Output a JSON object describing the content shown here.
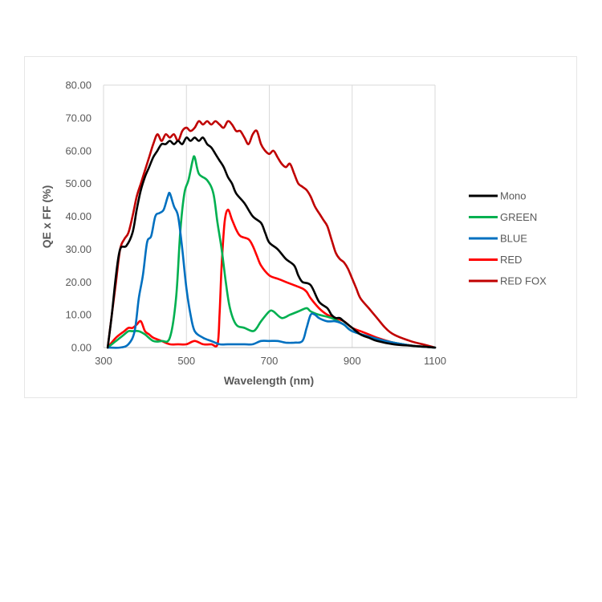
{
  "chart_data": {
    "type": "line",
    "title": "",
    "xlabel": "Wavelength (nm)",
    "ylabel": "QE x FF (%)",
    "xlim": [
      300,
      1100
    ],
    "ylim": [
      0,
      80
    ],
    "xticks": [
      "300",
      "500",
      "700",
      "900",
      "1100"
    ],
    "yticks": [
      "0.00",
      "10.00",
      "20.00",
      "30.00",
      "40.00",
      "50.00",
      "60.00",
      "70.00",
      "80.00"
    ],
    "grid": "vertical",
    "legend_position": "right",
    "series": [
      {
        "name": "Mono",
        "color": "#000000",
        "points": [
          [
            310,
            0
          ],
          [
            320,
            10
          ],
          [
            330,
            22
          ],
          [
            340,
            30
          ],
          [
            355,
            31
          ],
          [
            370,
            35
          ],
          [
            380,
            42
          ],
          [
            390,
            48
          ],
          [
            400,
            52
          ],
          [
            410,
            55
          ],
          [
            420,
            58
          ],
          [
            430,
            60
          ],
          [
            440,
            62
          ],
          [
            450,
            62
          ],
          [
            460,
            63
          ],
          [
            470,
            62
          ],
          [
            480,
            63
          ],
          [
            490,
            62
          ],
          [
            500,
            64
          ],
          [
            510,
            63
          ],
          [
            520,
            64
          ],
          [
            530,
            63
          ],
          [
            540,
            64
          ],
          [
            550,
            62
          ],
          [
            560,
            61
          ],
          [
            570,
            59
          ],
          [
            580,
            57
          ],
          [
            590,
            55
          ],
          [
            600,
            52
          ],
          [
            610,
            50
          ],
          [
            620,
            47
          ],
          [
            640,
            44
          ],
          [
            660,
            40
          ],
          [
            680,
            38
          ],
          [
            690,
            35
          ],
          [
            700,
            32
          ],
          [
            720,
            30
          ],
          [
            740,
            27
          ],
          [
            760,
            25
          ],
          [
            770,
            22
          ],
          [
            780,
            20
          ],
          [
            800,
            19
          ],
          [
            820,
            14
          ],
          [
            840,
            12
          ],
          [
            850,
            10
          ],
          [
            860,
            9
          ],
          [
            870,
            9
          ],
          [
            880,
            8
          ],
          [
            900,
            6
          ],
          [
            920,
            4
          ],
          [
            940,
            3
          ],
          [
            960,
            2
          ],
          [
            1000,
            1
          ],
          [
            1050,
            0.5
          ],
          [
            1100,
            0
          ]
        ]
      },
      {
        "name": "GREEN",
        "color": "#00b050",
        "points": [
          [
            310,
            0
          ],
          [
            330,
            2
          ],
          [
            340,
            3
          ],
          [
            350,
            4
          ],
          [
            360,
            5
          ],
          [
            370,
            5
          ],
          [
            385,
            5
          ],
          [
            400,
            4
          ],
          [
            420,
            2
          ],
          [
            440,
            2
          ],
          [
            460,
            3
          ],
          [
            475,
            15
          ],
          [
            485,
            35
          ],
          [
            495,
            47
          ],
          [
            505,
            51
          ],
          [
            515,
            57
          ],
          [
            520,
            58
          ],
          [
            530,
            53
          ],
          [
            550,
            51
          ],
          [
            565,
            47
          ],
          [
            575,
            38
          ],
          [
            585,
            30
          ],
          [
            595,
            20
          ],
          [
            605,
            12
          ],
          [
            620,
            7
          ],
          [
            640,
            6
          ],
          [
            660,
            5
          ],
          [
            670,
            6
          ],
          [
            680,
            8
          ],
          [
            700,
            11
          ],
          [
            710,
            11
          ],
          [
            730,
            9
          ],
          [
            750,
            10
          ],
          [
            770,
            11
          ],
          [
            790,
            12
          ],
          [
            800,
            11
          ],
          [
            820,
            10
          ],
          [
            850,
            9
          ],
          [
            880,
            7
          ],
          [
            900,
            5
          ],
          [
            950,
            3
          ],
          [
            1000,
            1.5
          ],
          [
            1050,
            0.5
          ],
          [
            1100,
            0
          ]
        ]
      },
      {
        "name": "BLUE",
        "color": "#0070c0",
        "points": [
          [
            310,
            0
          ],
          [
            340,
            0
          ],
          [
            360,
            1
          ],
          [
            375,
            5
          ],
          [
            385,
            15
          ],
          [
            395,
            22
          ],
          [
            405,
            32
          ],
          [
            415,
            34
          ],
          [
            425,
            40
          ],
          [
            435,
            41
          ],
          [
            445,
            42
          ],
          [
            455,
            46
          ],
          [
            460,
            47
          ],
          [
            470,
            43
          ],
          [
            480,
            40
          ],
          [
            490,
            30
          ],
          [
            500,
            18
          ],
          [
            510,
            10
          ],
          [
            520,
            5
          ],
          [
            540,
            3
          ],
          [
            560,
            2
          ],
          [
            580,
            1
          ],
          [
            600,
            1
          ],
          [
            620,
            1
          ],
          [
            640,
            1
          ],
          [
            660,
            1
          ],
          [
            680,
            2
          ],
          [
            700,
            2
          ],
          [
            720,
            2
          ],
          [
            740,
            1.5
          ],
          [
            760,
            1.5
          ],
          [
            780,
            2
          ],
          [
            790,
            6
          ],
          [
            800,
            10
          ],
          [
            810,
            10
          ],
          [
            820,
            9
          ],
          [
            840,
            8
          ],
          [
            860,
            8
          ],
          [
            880,
            7
          ],
          [
            900,
            5
          ],
          [
            950,
            3
          ],
          [
            1000,
            1.5
          ],
          [
            1050,
            0.5
          ],
          [
            1100,
            0
          ]
        ]
      },
      {
        "name": "RED",
        "color": "#ff0000",
        "points": [
          [
            310,
            0
          ],
          [
            330,
            3
          ],
          [
            350,
            5
          ],
          [
            360,
            6
          ],
          [
            370,
            6
          ],
          [
            380,
            7
          ],
          [
            390,
            8
          ],
          [
            400,
            5
          ],
          [
            410,
            4
          ],
          [
            420,
            3
          ],
          [
            440,
            2
          ],
          [
            460,
            1
          ],
          [
            480,
            1
          ],
          [
            500,
            1
          ],
          [
            520,
            2
          ],
          [
            540,
            1
          ],
          [
            560,
            1
          ],
          [
            575,
            1
          ],
          [
            580,
            10
          ],
          [
            585,
            25
          ],
          [
            592,
            38
          ],
          [
            600,
            42
          ],
          [
            610,
            39
          ],
          [
            620,
            36
          ],
          [
            630,
            34
          ],
          [
            650,
            33
          ],
          [
            660,
            31
          ],
          [
            670,
            28
          ],
          [
            680,
            25
          ],
          [
            700,
            22
          ],
          [
            720,
            21
          ],
          [
            740,
            20
          ],
          [
            760,
            19
          ],
          [
            780,
            18
          ],
          [
            790,
            17
          ],
          [
            800,
            15
          ],
          [
            820,
            12
          ],
          [
            840,
            10
          ],
          [
            860,
            9
          ],
          [
            880,
            8
          ],
          [
            900,
            6
          ],
          [
            920,
            5
          ],
          [
            940,
            4
          ],
          [
            960,
            3
          ],
          [
            1000,
            1.5
          ],
          [
            1050,
            0.5
          ],
          [
            1100,
            0
          ]
        ]
      },
      {
        "name": "RED FOX",
        "color": "#c00000",
        "points": [
          [
            310,
            0
          ],
          [
            320,
            10
          ],
          [
            330,
            20
          ],
          [
            340,
            30
          ],
          [
            350,
            33
          ],
          [
            360,
            35
          ],
          [
            370,
            40
          ],
          [
            380,
            46
          ],
          [
            390,
            50
          ],
          [
            400,
            54
          ],
          [
            410,
            58
          ],
          [
            420,
            62
          ],
          [
            430,
            65
          ],
          [
            440,
            63
          ],
          [
            450,
            65
          ],
          [
            460,
            64
          ],
          [
            470,
            65
          ],
          [
            480,
            63
          ],
          [
            490,
            66
          ],
          [
            500,
            67
          ],
          [
            510,
            66
          ],
          [
            520,
            67
          ],
          [
            530,
            69
          ],
          [
            540,
            68
          ],
          [
            550,
            69
          ],
          [
            560,
            68
          ],
          [
            570,
            69
          ],
          [
            580,
            68
          ],
          [
            590,
            67
          ],
          [
            600,
            69
          ],
          [
            610,
            68
          ],
          [
            620,
            66
          ],
          [
            630,
            66
          ],
          [
            640,
            64
          ],
          [
            650,
            62
          ],
          [
            660,
            65
          ],
          [
            670,
            66
          ],
          [
            680,
            62
          ],
          [
            690,
            60
          ],
          [
            700,
            59
          ],
          [
            710,
            60
          ],
          [
            720,
            58
          ],
          [
            730,
            56
          ],
          [
            740,
            55
          ],
          [
            750,
            56
          ],
          [
            760,
            53
          ],
          [
            770,
            50
          ],
          [
            780,
            49
          ],
          [
            790,
            48
          ],
          [
            800,
            46
          ],
          [
            810,
            43
          ],
          [
            820,
            41
          ],
          [
            830,
            39
          ],
          [
            840,
            37
          ],
          [
            850,
            33
          ],
          [
            860,
            29
          ],
          [
            870,
            27
          ],
          [
            880,
            26
          ],
          [
            890,
            24
          ],
          [
            900,
            21
          ],
          [
            910,
            18
          ],
          [
            920,
            15
          ],
          [
            940,
            12
          ],
          [
            960,
            9
          ],
          [
            980,
            6
          ],
          [
            1000,
            4
          ],
          [
            1040,
            2
          ],
          [
            1070,
            1
          ],
          [
            1100,
            0
          ]
        ]
      }
    ]
  }
}
